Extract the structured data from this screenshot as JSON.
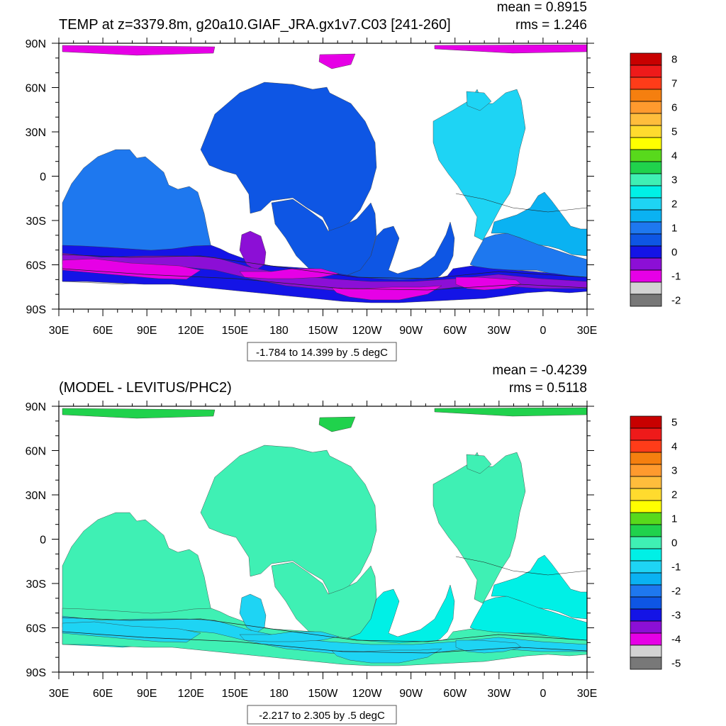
{
  "figure": {
    "panels": [
      {
        "title": "TEMP at z=3379.8m, g20a10.GIAF_JRA.gx1v7.C03 [241-260]",
        "mean_label": "mean = 0.8915",
        "rms_label": "rms = 1.246",
        "range_label": "-1.784 to 14.399 by .5 degC",
        "colorbar_labels": [
          "8",
          "7",
          "6",
          "5",
          "4",
          "3",
          "2",
          "1",
          "0",
          "-1",
          "-2"
        ],
        "colors": [
          "#c80000",
          "#ee1a1a",
          "#ff3c19",
          "#f57f0f",
          "#ff9a2e",
          "#ffbd3c",
          "#ffdb2e",
          "#ffff00",
          "#58d91c",
          "#20d24c",
          "#3ff0b4",
          "#00f0e6",
          "#1ed4f4",
          "#0ab2f2",
          "#1e78ef",
          "#0e56e4",
          "#1414e6",
          "#8c0fd6",
          "#e600e6",
          "#d2d2d2",
          "#787878"
        ],
        "regions": {
          "arctic": 18,
          "north_pacific": 15,
          "north_atlantic": 12,
          "tropical_atlantic": 13,
          "tropical_pacific": 15,
          "indian": 14,
          "south_atlantic": 14,
          "south_pacific": 15,
          "southern_band": 16,
          "southern_deep": 17,
          "antarctic_rim": 18,
          "shelf": 19
        }
      },
      {
        "title": "(MODEL - LEVITUS/PHC2)",
        "mean_label": "mean = -0.4239",
        "rms_label": "rms = 0.5118",
        "range_label": "-2.217 to 2.305 by .5 degC",
        "colorbar_labels": [
          "5",
          "4",
          "3",
          "2",
          "1",
          "0",
          "-1",
          "-2",
          "-3",
          "-4",
          "-5"
        ],
        "colors": [
          "#c80000",
          "#ee1a1a",
          "#ff3c19",
          "#f57f0f",
          "#ff9a2e",
          "#ffbd3c",
          "#ffdb2e",
          "#ffff00",
          "#58d91c",
          "#20d24c",
          "#3ff0b4",
          "#00f0e6",
          "#1ed4f4",
          "#0ab2f2",
          "#1e78ef",
          "#0e56e4",
          "#1414e6",
          "#8c0fd6",
          "#e600e6",
          "#d2d2d2",
          "#787878"
        ],
        "regions": {
          "arctic": 9,
          "north_pacific": 10,
          "north_atlantic": 10,
          "tropical_atlantic": 11,
          "tropical_pacific": 10,
          "indian": 10,
          "south_atlantic": 11,
          "south_pacific": 11,
          "southern_band": 10,
          "southern_deep": 12,
          "antarctic_rim": 12,
          "shelf": 11
        }
      }
    ],
    "lat_labels": [
      "90N",
      "60N",
      "30N",
      "0",
      "30S",
      "60S",
      "90S"
    ],
    "lon_labels": [
      "30E",
      "60E",
      "90E",
      "120E",
      "150E",
      "180",
      "150W",
      "120W",
      "90W",
      "60W",
      "30W",
      "0",
      "30E"
    ]
  }
}
